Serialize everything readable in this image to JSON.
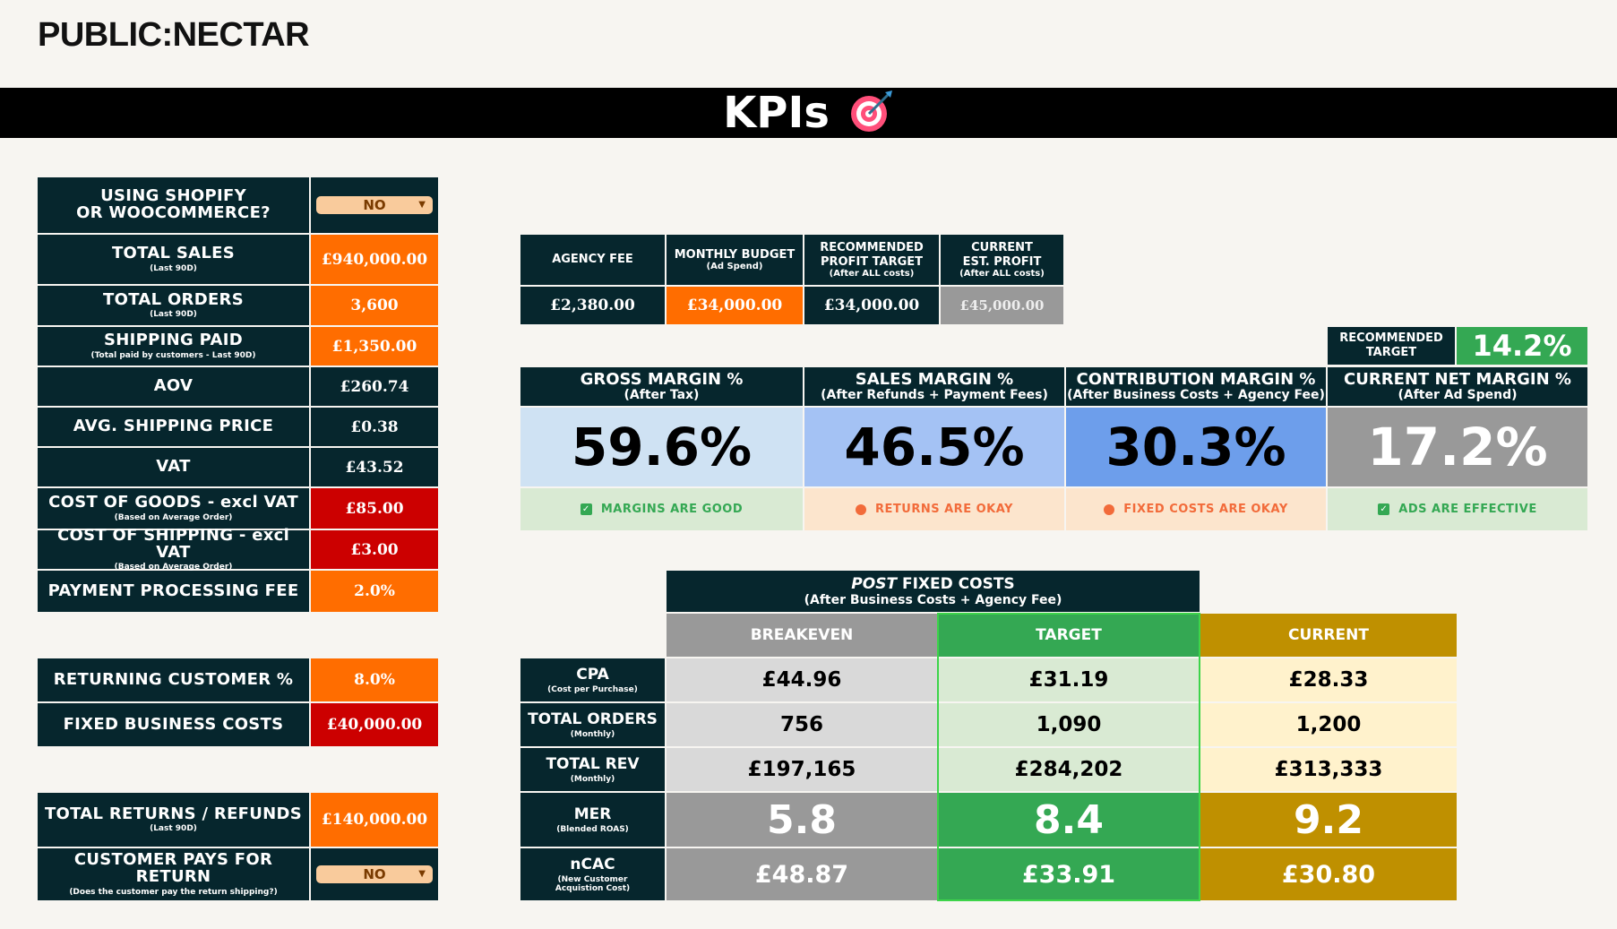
{
  "brand": "PUBLIC:NECTAR",
  "title": "KPIs",
  "inputs": [
    {
      "label": "USING SHOPIFY",
      "label2": "OR WOOCOMMERCE?",
      "sub": "",
      "value": "NO",
      "type": "dropdown"
    },
    {
      "label": "TOTAL SALES",
      "sub": "(Last 90D)",
      "value": "£940,000.00",
      "type": "orange"
    },
    {
      "label": "TOTAL ORDERS",
      "sub": "(Last 90D)",
      "value": "3,600",
      "type": "orange"
    },
    {
      "label": "SHIPPING PAID",
      "sub": "(Total paid by customers - Last 90D)",
      "value": "£1,350.00",
      "type": "orange"
    },
    {
      "label": "AOV",
      "sub": "",
      "value": "£260.74",
      "type": "navy"
    },
    {
      "label": "AVG. SHIPPING PRICE",
      "sub": "",
      "value": "£0.38",
      "type": "navy"
    },
    {
      "label": "VAT",
      "sub": "",
      "value": "£43.52",
      "type": "navy"
    },
    {
      "label": "COST OF GOODS - excl VAT",
      "sub": "(Based on Average Order)",
      "value": "£85.00",
      "type": "red"
    },
    {
      "label": "COST OF SHIPPING - excl VAT",
      "sub": "(Based on Average Order)",
      "value": "£3.00",
      "type": "red"
    },
    {
      "label": "PAYMENT PROCESSING FEE",
      "sub": "",
      "value": "2.0%",
      "type": "orange"
    }
  ],
  "inputs2": [
    {
      "label": "RETURNING CUSTOMER %",
      "sub": "",
      "value": "8.0%",
      "type": "orange"
    },
    {
      "label": "FIXED BUSINESS COSTS",
      "sub": "",
      "value": "£40,000.00",
      "type": "red"
    }
  ],
  "inputs3": [
    {
      "label": "TOTAL RETURNS / REFUNDS",
      "sub": "(Last 90D)",
      "value": "£140,000.00",
      "type": "orange"
    },
    {
      "label": "CUSTOMER PAYS FOR RETURN",
      "sub": "(Does the customer pay the return shipping?)",
      "value": "NO",
      "type": "dropdown"
    }
  ],
  "budget": {
    "headers": [
      {
        "l1": "AGENCY FEE",
        "l2": "",
        "l3": ""
      },
      {
        "l1": "MONTHLY BUDGET",
        "l2": "(Ad Spend)",
        "l3": ""
      },
      {
        "l1": "RECOMMENDED",
        "l2": "PROFIT TARGET",
        "l3": "(After ALL costs)"
      },
      {
        "l1": "CURRENT",
        "l2": "EST. PROFIT",
        "l3": "(After ALL costs)"
      }
    ],
    "values": [
      "£2,380.00",
      "£34,000.00",
      "£34,000.00",
      "£45,000.00"
    ]
  },
  "recommended_target": {
    "label1": "RECOMMENDED",
    "label2": "TARGET",
    "value": "14.2%"
  },
  "margins": [
    {
      "title": "GROSS MARGIN %",
      "sub": "(After Tax)",
      "value": "59.6%",
      "status": "MARGINS ARE GOOD",
      "icon": "check"
    },
    {
      "title": "SALES MARGIN %",
      "sub": "(After Refunds + Payment Fees)",
      "value": "46.5%",
      "status": "RETURNS ARE OKAY",
      "icon": "dot"
    },
    {
      "title": "CONTRIBUTION MARGIN %",
      "sub": "(After Business Costs + Agency Fee)",
      "value": "30.3%",
      "status": "FIXED COSTS ARE OKAY",
      "icon": "dot"
    },
    {
      "title": "CURRENT NET MARGIN %",
      "sub": "(After Ad Spend)",
      "value": "17.2%",
      "status": "ADS ARE EFFECTIVE",
      "icon": "check"
    }
  ],
  "post": {
    "title_em": "POST",
    "title_rest": " FIXED COSTS",
    "sub": "(After Business Costs + Agency Fee)",
    "cols": [
      "BREAKEVEN",
      "TARGET",
      "CURRENT"
    ],
    "rows": [
      {
        "label": "CPA",
        "sub": "(Cost per Purchase)",
        "values": [
          "£44.96",
          "£31.19",
          "£28.33"
        ]
      },
      {
        "label": "TOTAL ORDERS",
        "sub": "(Monthly)",
        "values": [
          "756",
          "1,090",
          "1,200"
        ]
      },
      {
        "label": "TOTAL REV",
        "sub": "(Monthly)",
        "values": [
          "£197,165",
          "£284,202",
          "£313,333"
        ]
      },
      {
        "label": "MER",
        "sub": "(Blended ROAS)",
        "values": [
          "5.8",
          "8.4",
          "9.2"
        ]
      },
      {
        "label": "nCAC",
        "sub": "(New Customer",
        "sub2": "Acquistion Cost)",
        "values": [
          "£48.87",
          "£33.91",
          "£30.80"
        ]
      }
    ]
  },
  "colors": {
    "navy": "#06262d",
    "orange": "#ff6d00",
    "red": "#cc0000",
    "green": "#34a853",
    "gold": "#bf9000",
    "grey": "#999999"
  }
}
